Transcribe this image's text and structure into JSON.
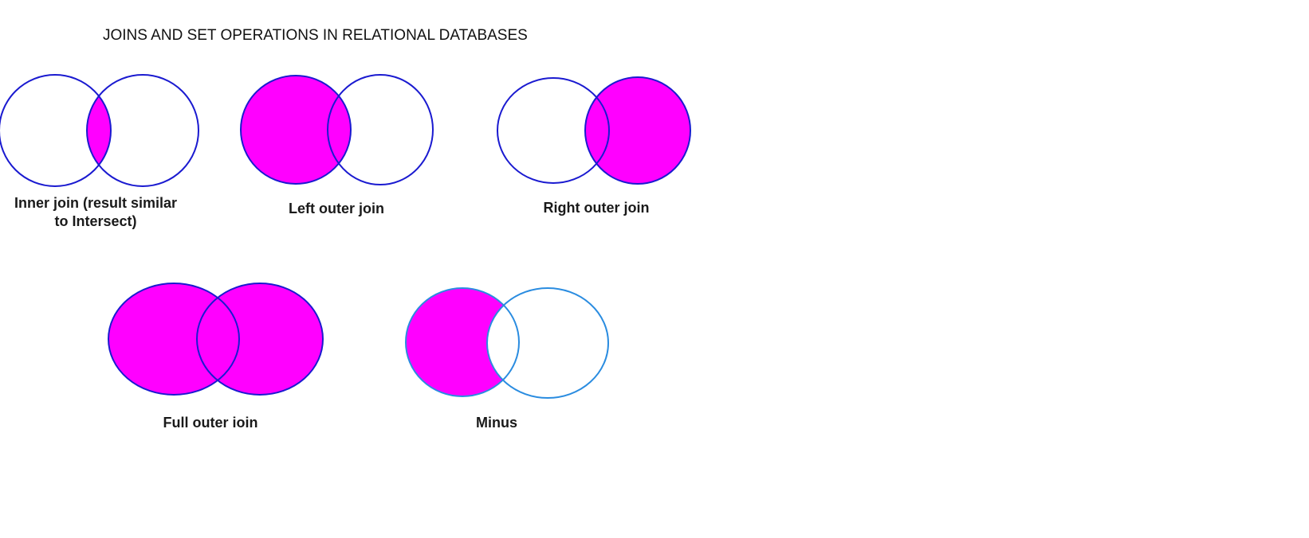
{
  "title": "JOINS AND SET OPERATIONS IN RELATIONAL DATABASES",
  "colors": {
    "fill": "#ff00ff",
    "stroke_dark": "#1a1ad0",
    "stroke_light": "#2a8ce0",
    "background": "#ffffff"
  },
  "diagrams": [
    {
      "id": "inner",
      "caption": "Inner join (result similar to Intersect)",
      "caption_lines": [
        "Inner join (result similar",
        "to Intersect)"
      ]
    },
    {
      "id": "left",
      "caption": "Left outer join"
    },
    {
      "id": "right",
      "caption": "Right outer join"
    },
    {
      "id": "full",
      "caption": "Full outer ioin"
    },
    {
      "id": "minus",
      "caption": "Minus"
    }
  ]
}
